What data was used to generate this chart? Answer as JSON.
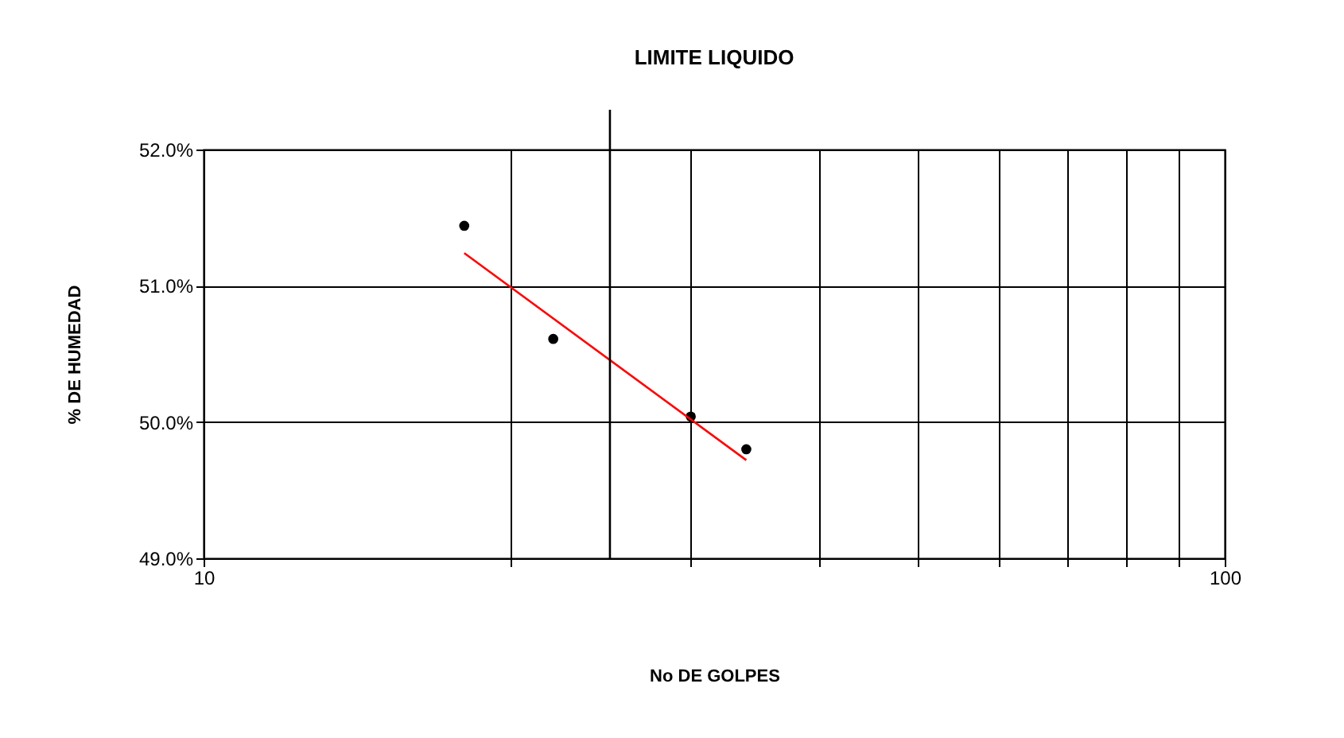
{
  "chart_data": {
    "type": "scatter",
    "title": "LIMITE LIQUIDO",
    "xlabel": "No DE GOLPES",
    "ylabel": "% DE HUMEDAD",
    "log": "x",
    "grid": true,
    "xlim": [
      10,
      100
    ],
    "xticks": [
      10,
      {
        "value": 20,
        "label": null
      },
      {
        "value": 30,
        "label": null
      },
      {
        "value": 40,
        "label": null
      },
      {
        "value": 50,
        "label": null
      },
      {
        "value": 60,
        "label": null
      },
      {
        "value": 70,
        "label": null
      },
      {
        "value": 80,
        "label": null
      },
      {
        "value": 90,
        "label": null
      },
      100
    ],
    "ylim": [
      49,
      52
    ],
    "yticks": [
      {
        "value": 49,
        "label": "49.0%"
      },
      {
        "value": 50,
        "label": "50.0%"
      },
      {
        "value": 51,
        "label": "51.0%"
      },
      {
        "value": 52,
        "label": "52.0%"
      }
    ],
    "ref_lines": [
      {
        "axis": "x",
        "value": 25,
        "color": "#000000"
      }
    ],
    "series": [
      {
        "type": "scatter",
        "marker": "circle",
        "color": "#000000",
        "x": [
          18,
          22,
          30,
          34
        ],
        "values": [
          51.44,
          50.61,
          50.04,
          49.8
        ]
      },
      {
        "type": "line",
        "color": "#ff0000",
        "marker": "none",
        "x": [
          18,
          34
        ],
        "values": [
          51.24,
          49.72
        ]
      }
    ]
  }
}
